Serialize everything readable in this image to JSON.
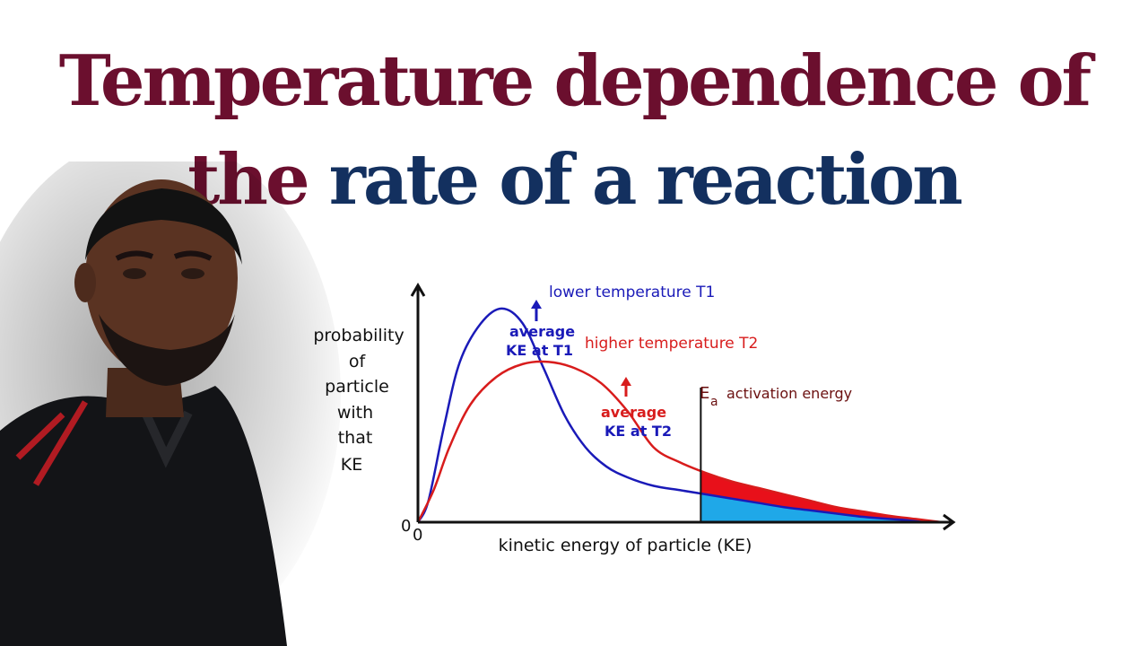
{
  "title": {
    "line1": "Temperature dependence of",
    "line2_a": "the",
    "line2_b": "rate of a reaction",
    "color_primary": "#6b0f2e",
    "color_secondary": "#13305f"
  },
  "chart_data": {
    "type": "line",
    "ylabel": [
      "probability",
      "of",
      "particle",
      "with",
      "that",
      "KE"
    ],
    "xlabel": "kinetic energy of particle (KE)",
    "x_origin_label": "0",
    "y_origin_label": "0",
    "xlim": [
      0,
      1
    ],
    "ylim": [
      0,
      1.1
    ],
    "grid": false,
    "series": [
      {
        "name": "lower temperature T1",
        "color": "#1a1ab8",
        "x": [
          0.0,
          0.02,
          0.05,
          0.08,
          0.12,
          0.16,
          0.2,
          0.24,
          0.28,
          0.32,
          0.36,
          0.4,
          0.45,
          0.5,
          0.55,
          0.6,
          0.65,
          0.7,
          0.75,
          0.8,
          0.85,
          0.9,
          0.95,
          1.0
        ],
        "y": [
          0.0,
          0.1,
          0.45,
          0.75,
          0.93,
          1.0,
          0.93,
          0.72,
          0.5,
          0.35,
          0.26,
          0.21,
          0.17,
          0.15,
          0.13,
          0.11,
          0.09,
          0.07,
          0.055,
          0.04,
          0.025,
          0.015,
          0.008,
          0.0
        ]
      },
      {
        "name": "higher temperature T2",
        "color": "#d81c1c",
        "x": [
          0.0,
          0.03,
          0.06,
          0.1,
          0.15,
          0.2,
          0.25,
          0.3,
          0.35,
          0.4,
          0.45,
          0.5,
          0.55,
          0.6,
          0.65,
          0.7,
          0.75,
          0.8,
          0.85,
          0.9,
          0.95,
          1.0
        ],
        "y": [
          0.0,
          0.15,
          0.35,
          0.55,
          0.68,
          0.74,
          0.75,
          0.72,
          0.65,
          0.52,
          0.35,
          0.28,
          0.23,
          0.19,
          0.16,
          0.13,
          0.1,
          0.07,
          0.05,
          0.03,
          0.015,
          0.0
        ]
      }
    ],
    "activation_energy": {
      "x": 0.54,
      "label_main": "E",
      "label_sub": "a",
      "label_text": "activation energy",
      "fill_t2_color": "#e8101a",
      "fill_t1_color": "#1fa8e8"
    },
    "annotations": [
      {
        "text": "lower temperature T1",
        "color": "#1a1ab8"
      },
      {
        "text": "average",
        "color": "#1a1ab8"
      },
      {
        "text": "KE at T1",
        "color": "#1a1ab8"
      },
      {
        "text": "higher temperature T2",
        "color": "#d81c1c"
      },
      {
        "text": "average",
        "color": "#d81c1c"
      },
      {
        "text": "KE at T2",
        "color": "#1a1ab8"
      }
    ]
  }
}
